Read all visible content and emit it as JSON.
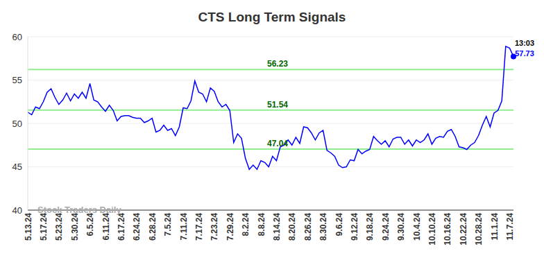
{
  "chart_data": {
    "type": "line",
    "title": "CTS Long Term Signals",
    "watermark": "Stock Traders Daily",
    "annotations": [
      "13:03"
    ],
    "color": "#0000ff",
    "grid": true,
    "ylim": [
      40,
      60
    ],
    "yticks": [
      40,
      45,
      50,
      55,
      60
    ],
    "levels": [
      {
        "value": 56.23,
        "color": "#90ee90"
      },
      {
        "value": 51.54,
        "color": "#90ee90"
      },
      {
        "value": 47.04,
        "color": "#90ee90"
      }
    ],
    "categories": [
      "5.13.24",
      null,
      null,
      null,
      "5.17.24",
      null,
      null,
      null,
      "5.23.24",
      null,
      null,
      null,
      "5.30.24",
      null,
      null,
      null,
      "6.5.24",
      null,
      null,
      null,
      "6.11.24",
      null,
      null,
      null,
      "6.17.24",
      null,
      null,
      null,
      "6.24.24",
      null,
      null,
      null,
      "6.28.24",
      null,
      null,
      null,
      "7.5.24",
      null,
      null,
      null,
      "7.11.24",
      null,
      null,
      null,
      "7.17.24",
      null,
      null,
      null,
      "7.23.24",
      null,
      null,
      null,
      "7.29.24",
      null,
      null,
      null,
      "8.2.24",
      null,
      null,
      null,
      "8.8.24",
      null,
      null,
      null,
      "8.14.24",
      null,
      null,
      null,
      "8.20.24",
      null,
      null,
      null,
      "8.26.24",
      null,
      null,
      null,
      "8.30.24",
      null,
      null,
      null,
      "9.6.24",
      null,
      null,
      null,
      "9.12.24",
      null,
      null,
      null,
      "9.18.24",
      null,
      null,
      null,
      "9.24.24",
      null,
      null,
      null,
      "9.30.24",
      null,
      null,
      null,
      "10.4.24",
      null,
      null,
      null,
      "10.10.24",
      null,
      null,
      null,
      "10.16.24",
      null,
      null,
      null,
      "10.22.24",
      null,
      null,
      null,
      "10.28.24",
      null,
      null,
      null,
      "11.1.24",
      null,
      null,
      null,
      "11.7.24",
      null
    ],
    "values": [
      51.3,
      51.0,
      51.9,
      51.7,
      52.5,
      53.6,
      54.0,
      53.0,
      52.2,
      52.7,
      53.5,
      52.6,
      53.4,
      52.9,
      53.6,
      52.9,
      54.6,
      52.7,
      52.5,
      51.9,
      51.4,
      52.1,
      51.5,
      50.3,
      50.8,
      50.9,
      50.9,
      50.7,
      50.6,
      50.6,
      50.1,
      50.3,
      50.6,
      49.0,
      49.2,
      49.8,
      49.2,
      49.4,
      48.6,
      49.6,
      51.8,
      51.7,
      52.6,
      54.9,
      53.6,
      53.4,
      52.5,
      54.1,
      53.7,
      52.5,
      51.9,
      52.2,
      51.5,
      47.8,
      48.8,
      48.3,
      46.0,
      44.7,
      45.2,
      44.7,
      45.7,
      45.5,
      45.0,
      46.2,
      45.7,
      47.3,
      47.5,
      48.1,
      47.5,
      48.4,
      47.7,
      49.6,
      49.5,
      48.9,
      48.1,
      48.9,
      49.2,
      46.9,
      46.6,
      46.2,
      45.2,
      44.9,
      45.0,
      45.8,
      45.7,
      47.0,
      46.5,
      46.8,
      47.0,
      48.5,
      48.0,
      47.6,
      48.0,
      47.3,
      48.2,
      48.4,
      48.4,
      47.6,
      48.1,
      47.4,
      48.1,
      47.8,
      48.1,
      48.8,
      47.6,
      48.3,
      48.5,
      48.4,
      49.1,
      49.3,
      48.5,
      47.3,
      47.2,
      47.0,
      47.5,
      47.8,
      48.6,
      49.8,
      50.8,
      49.6,
      51.2,
      51.5,
      52.6,
      58.9,
      58.7,
      57.73
    ]
  }
}
